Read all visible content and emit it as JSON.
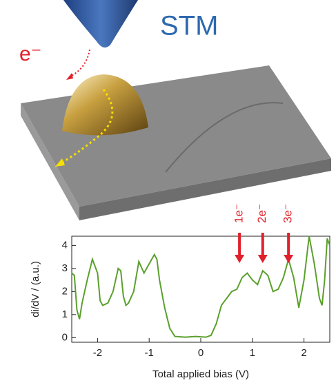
{
  "illustration": {
    "title": "STM",
    "electron": "e⁻"
  },
  "chart_data": {
    "type": "line",
    "xlabel": "Total applied bias (V)",
    "ylabel": "di/dV / (a.u.)",
    "xlim": [
      -2.5,
      2.5
    ],
    "ylim": [
      -0.2,
      4.4
    ],
    "xticks": [
      -2,
      -1,
      0,
      1,
      2
    ],
    "yticks": [
      0,
      1,
      2,
      3,
      4
    ],
    "x": [
      -2.5,
      -2.45,
      -2.4,
      -2.35,
      -2.3,
      -2.2,
      -2.1,
      -2.0,
      -1.95,
      -1.9,
      -1.8,
      -1.7,
      -1.6,
      -1.55,
      -1.5,
      -1.45,
      -1.4,
      -1.3,
      -1.2,
      -1.1,
      -1.0,
      -0.9,
      -0.85,
      -0.8,
      -0.7,
      -0.6,
      -0.5,
      -0.3,
      -0.1,
      0.1,
      0.2,
      0.3,
      0.4,
      0.5,
      0.6,
      0.7,
      0.8,
      0.9,
      1.0,
      1.1,
      1.2,
      1.3,
      1.4,
      1.5,
      1.6,
      1.7,
      1.8,
      1.9,
      2.0,
      2.1,
      2.2,
      2.3,
      2.35,
      2.4,
      2.45,
      2.5
    ],
    "series": [
      {
        "color": "#5aa02c",
        "values": [
          2.8,
          2.7,
          1.2,
          0.8,
          1.5,
          2.5,
          3.4,
          2.8,
          1.6,
          1.4,
          1.5,
          2.0,
          3.0,
          2.9,
          1.8,
          1.4,
          1.5,
          2.0,
          3.3,
          2.8,
          3.2,
          3.6,
          3.4,
          2.5,
          1.3,
          0.4,
          0.05,
          0.02,
          0.05,
          0.02,
          0.1,
          0.6,
          1.4,
          1.7,
          2.0,
          2.1,
          2.6,
          2.8,
          2.5,
          2.3,
          2.9,
          2.7,
          2.0,
          2.1,
          2.6,
          3.4,
          2.6,
          1.3,
          2.5,
          4.4,
          3.2,
          1.7,
          1.4,
          2.5,
          4.3,
          4.0
        ]
      }
    ],
    "annotations": [
      {
        "text": "1e⁻",
        "x": 0.75
      },
      {
        "text": "2e⁻",
        "x": 1.2
      },
      {
        "text": "3e⁻",
        "x": 1.7
      }
    ],
    "annotation_color": "#e0202a"
  }
}
